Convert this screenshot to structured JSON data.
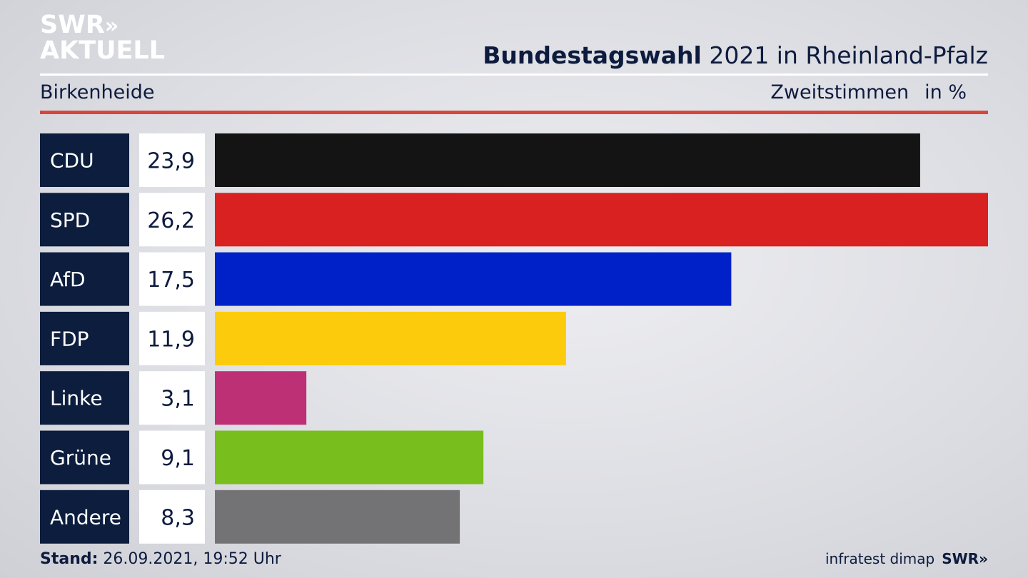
{
  "logo": {
    "line1": "SWR",
    "chevrons": "»",
    "line2": "AKTUELL"
  },
  "header": {
    "title_bold": "Bundestagswahl",
    "title_rest": " 2021 in Rheinland-Pfalz",
    "region": "Birkenheide",
    "measure": "Zweitstimmen",
    "unit": "in %"
  },
  "footer": {
    "stand_label": "Stand:",
    "stand_value": " 26.09.2021, 19:52 Uhr",
    "source": "infratest dimap",
    "brand": "SWR»"
  },
  "colors": {
    "label_bg": "#0c1d3d",
    "value_bg": "#ffffff",
    "accent_rule": "#d6463b"
  },
  "chart_data": {
    "type": "bar",
    "orientation": "horizontal",
    "categories": [
      "CDU",
      "SPD",
      "AfD",
      "FDP",
      "Linke",
      "Grüne",
      "Andere"
    ],
    "values": [
      23.9,
      26.2,
      17.5,
      11.9,
      3.1,
      9.1,
      8.3
    ],
    "value_labels": [
      "23,9",
      "26,2",
      "17,5",
      "11,9",
      "3,1",
      "9,1",
      "8,3"
    ],
    "colors": [
      "#141414",
      "#d92121",
      "#0021c8",
      "#fccb0b",
      "#be3075",
      "#78be1d",
      "#737376"
    ],
    "xlim": [
      0,
      26.2
    ],
    "grid": false,
    "legend": "none"
  }
}
